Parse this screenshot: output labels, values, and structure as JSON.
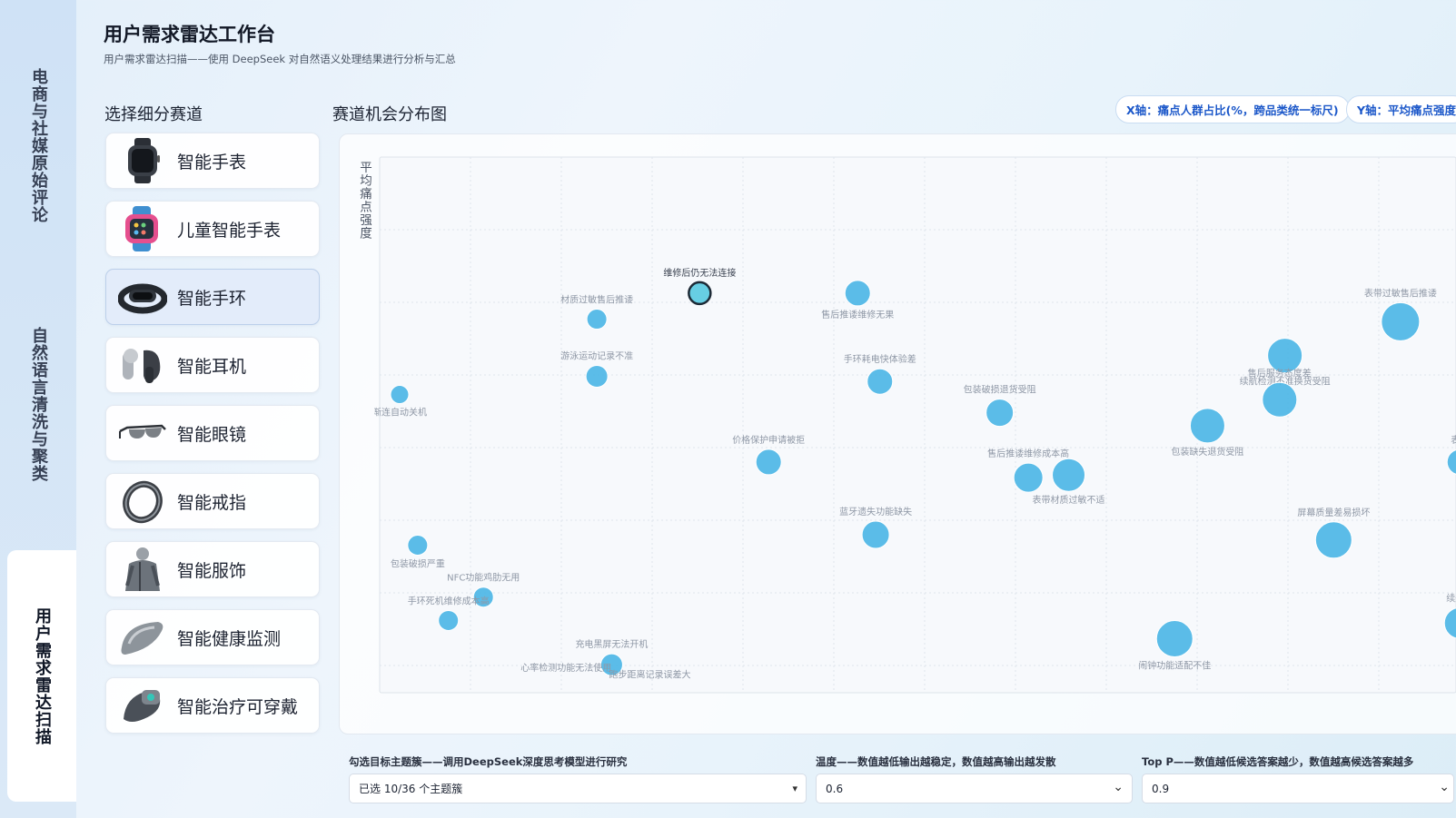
{
  "nav": {
    "tabs": [
      {
        "label": "电商与社媒原始评论",
        "active": false
      },
      {
        "label": "自然语言清洗与聚类",
        "active": false
      },
      {
        "label": "用户需求雷达扫描",
        "active": true
      }
    ]
  },
  "header": {
    "title": "用户需求雷达工作台",
    "subtitle": "用户需求雷达扫描——使用 DeepSeek 对自然语义处理结果进行分析与汇总"
  },
  "categories": {
    "section_title": "选择细分赛道",
    "items": [
      {
        "label": "智能手表",
        "icon": "smartwatch-icon",
        "active": false
      },
      {
        "label": "儿童智能手表",
        "icon": "kids-smartwatch-icon",
        "active": false
      },
      {
        "label": "智能手环",
        "icon": "smart-band-icon",
        "active": true
      },
      {
        "label": "智能耳机",
        "icon": "earbuds-icon",
        "active": false
      },
      {
        "label": "智能眼镜",
        "icon": "smart-glasses-icon",
        "active": false
      },
      {
        "label": "智能戒指",
        "icon": "smart-ring-icon",
        "active": false
      },
      {
        "label": "智能服饰",
        "icon": "smart-clothing-icon",
        "active": false
      },
      {
        "label": "智能健康监测",
        "icon": "health-monitor-icon",
        "active": false
      },
      {
        "label": "智能治疗可穿戴",
        "icon": "therapy-wearable-icon",
        "active": false
      }
    ]
  },
  "chart_header": {
    "title": "赛道机会分布图",
    "x_axis_pill": "X轴：痛点人群占比(%，跨品类统一标尺)",
    "y_axis_pill": "Y轴：平均痛点强度"
  },
  "chart_data": {
    "type": "scatter",
    "ylabel": "平均痛点强度",
    "xlabel": "痛点人群占比(%，跨品类统一标尺)",
    "grid": true,
    "point_color": "#49b5e6",
    "highlight_color": "#57c9e0",
    "points": [
      {
        "label": "维修后仍无法连接",
        "x": 0.295,
        "y": 0.745,
        "size": 12,
        "highlighted": true
      },
      {
        "label": "售后推诿维修无果",
        "x": 0.444,
        "y": 0.745,
        "size": 14
      },
      {
        "label": "材质过敏售后推诿",
        "x": 0.198,
        "y": 0.695,
        "size": 11
      },
      {
        "label": "表带过敏售后推诿",
        "x": 0.956,
        "y": 0.69,
        "size": 21
      },
      {
        "label": "续航检测不准换货受阻",
        "x": 0.847,
        "y": 0.625,
        "size": 19
      },
      {
        "label": "手环耗电快体验差",
        "x": 0.465,
        "y": 0.575,
        "size": 14
      },
      {
        "label": "游泳运动记录不准",
        "x": 0.198,
        "y": 0.585,
        "size": 12
      },
      {
        "label": "渐连自动关机",
        "x": 0.012,
        "y": 0.55,
        "size": 10
      },
      {
        "label": "售后服务态度差",
        "x": 0.842,
        "y": 0.54,
        "size": 19
      },
      {
        "label": "包装破损退货受阻",
        "x": 0.578,
        "y": 0.515,
        "size": 15
      },
      {
        "label": "包装缺失退货受阻",
        "x": 0.774,
        "y": 0.49,
        "size": 19
      },
      {
        "label": "价格保护申请被拒",
        "x": 0.36,
        "y": 0.42,
        "size": 14
      },
      {
        "label": "售后推诿维修成本高",
        "x": 0.605,
        "y": 0.39,
        "size": 16
      },
      {
        "label": "表带材质过敏不适",
        "x": 0.643,
        "y": 0.395,
        "size": 18
      },
      {
        "label": "蓝牙遗失功能缺失",
        "x": 0.461,
        "y": 0.28,
        "size": 15
      },
      {
        "label": "屏幕质量差易损坏",
        "x": 0.893,
        "y": 0.27,
        "size": 20
      },
      {
        "label": "包装破损严重",
        "x": 0.029,
        "y": 0.26,
        "size": 11
      },
      {
        "label": "NFC功能鸡肋无用",
        "x": 0.091,
        "y": 0.16,
        "size": 11
      },
      {
        "label": "手环死机维修成本高",
        "x": 0.058,
        "y": 0.115,
        "size": 11
      },
      {
        "label": "闹钟功能适配不佳",
        "x": 0.743,
        "y": 0.08,
        "size": 20
      },
      {
        "label": "充电黑屏无法开机",
        "x": 0.212,
        "y": 0.03,
        "size": 12
      },
      {
        "label": "心率检测功能无法使用",
        "x": 0.169,
        "y": 0.018,
        "size": 0
      },
      {
        "label": "跑步距离记录误差大",
        "x": 0.248,
        "y": 0.005,
        "size": 0
      },
      {
        "label": "表带",
        "x": 1.012,
        "y": 0.42,
        "size": 14
      },
      {
        "label": "续航与",
        "x": 1.012,
        "y": 0.11,
        "size": 17
      }
    ]
  },
  "controls": {
    "cluster_label": "勾选目标主题簇——调用DeepSeek深度思考模型进行研究",
    "cluster_value": "已选 10/36 个主题簇",
    "temperature_label": "温度——数值越低输出越稳定，数值越高输出越发散",
    "temperature_value": "0.6",
    "top_p_label": "Top P——数值越低候选答案越少，数值越高候选答案越多",
    "top_p_value": "0.9"
  }
}
